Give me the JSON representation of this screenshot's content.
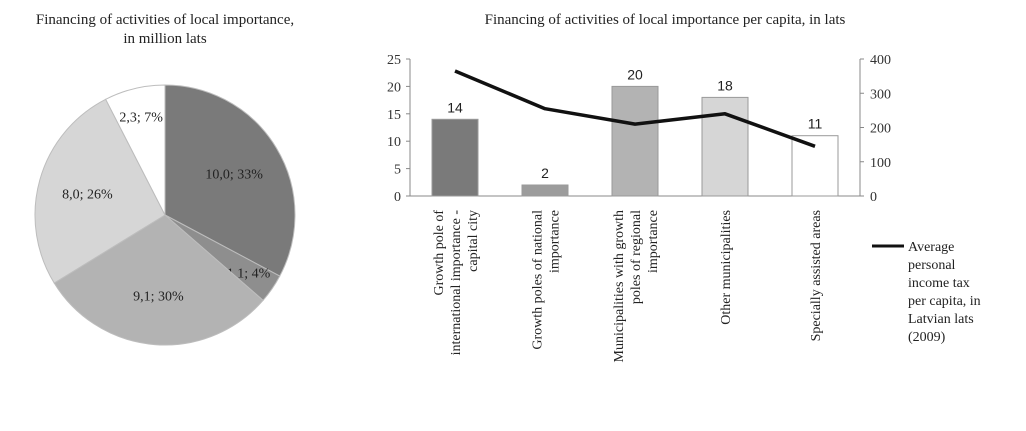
{
  "chart_data": [
    {
      "type": "pie",
      "title_lines": [
        "Financing of activities of local importance,",
        "in million lats"
      ],
      "slices": [
        {
          "label": "10,0; 33%",
          "value": 10.0,
          "percent": 33,
          "color": "#7a7a7a"
        },
        {
          "label": "1,1; 4%",
          "value": 1.1,
          "percent": 4,
          "color": "#8e8e8e"
        },
        {
          "label": "9,1; 30%",
          "value": 9.1,
          "percent": 30,
          "color": "#b3b3b3"
        },
        {
          "label": "8,0; 26%",
          "value": 8.0,
          "percent": 26,
          "color": "#d6d6d6"
        },
        {
          "label": "2,3; 7%",
          "value": 2.3,
          "percent": 7,
          "color": "#ffffff"
        }
      ]
    },
    {
      "type": "bar",
      "title": "Financing of activities of local importance per capita, in lats",
      "categories": [
        [
          "Growth pole of",
          "international importance -",
          "capital city"
        ],
        [
          "Growth poles of national",
          "importance"
        ],
        [
          "Municipalities with growth",
          "poles of regional",
          "importance"
        ],
        [
          "Other municipalities"
        ],
        [
          "Specially assisted areas"
        ]
      ],
      "bar_series": {
        "values": [
          14,
          2,
          20,
          18,
          11
        ],
        "labels": [
          "14",
          "2",
          "20",
          "18",
          "11"
        ],
        "colors": [
          "#7a7a7a",
          "#9c9c9c",
          "#b3b3b3",
          "#d6d6d6",
          "#ffffff"
        ]
      },
      "line_series": {
        "name_lines": [
          "Average",
          "personal",
          "income tax",
          "per capita, in",
          "Latvian lats",
          "(2009)"
        ],
        "values": [
          365,
          255,
          210,
          240,
          145
        ],
        "color": "#111111"
      },
      "y_left": {
        "min": 0,
        "max": 25,
        "ticks": [
          "0",
          "5",
          "10",
          "15",
          "20",
          "25"
        ]
      },
      "y_right": {
        "min": 0,
        "max": 400,
        "ticks": [
          "0",
          "100",
          "200",
          "300",
          "400"
        ]
      },
      "grid": false,
      "legend": "right"
    }
  ]
}
